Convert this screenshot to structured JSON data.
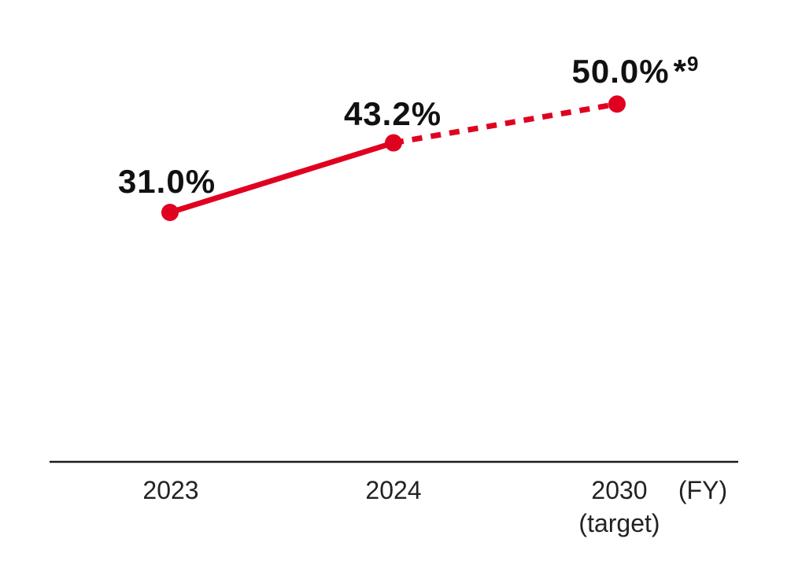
{
  "accent_color": "#e0001f",
  "axis_color": "#1c1c1c",
  "label_color": "#111111",
  "chart_data": {
    "type": "line",
    "title": "",
    "xlabel": "",
    "ylabel": "",
    "x_axis_unit_label": "(FY)",
    "grid": false,
    "legend": null,
    "categories": [
      "2023",
      "2024",
      "2030 (target)"
    ],
    "values": [
      31.0,
      43.2,
      50.0
    ],
    "value_labels": [
      "31.0%",
      "43.2%",
      "50.0%*9"
    ],
    "line_style_by_segment": [
      "solid",
      "dashed"
    ],
    "points": [
      {
        "category": "2023",
        "category_note": "",
        "value": 31.0,
        "label": "31.0%",
        "footnote_marker": "",
        "footnote_number": ""
      },
      {
        "category": "2024",
        "category_note": "",
        "value": 43.2,
        "label": "43.2%",
        "footnote_marker": "",
        "footnote_number": ""
      },
      {
        "category": "2030",
        "category_note": "(target)",
        "value": 50.0,
        "label": "50.0%",
        "footnote_marker": "*",
        "footnote_number": "9"
      }
    ]
  }
}
